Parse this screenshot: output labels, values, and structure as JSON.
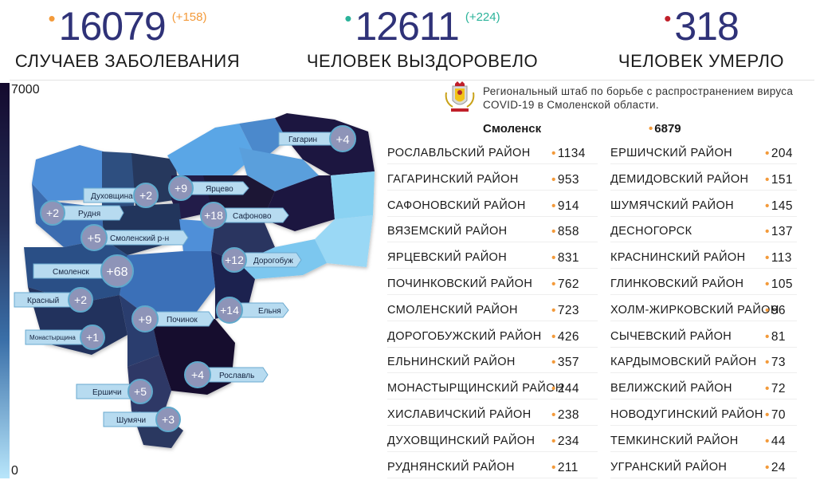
{
  "stats": {
    "cases": {
      "value": "16079",
      "delta": "(+158)",
      "caption": "Случаев заболевания",
      "dot_color": "#f39a3a",
      "delta_color": "#f39a3a"
    },
    "recovered": {
      "value": "12611",
      "delta": "(+224)",
      "caption": "Человек выздоровело",
      "dot_color": "#2bb39a",
      "delta_color": "#2bb39a"
    },
    "deaths": {
      "value": "318",
      "caption": "Человек умерло",
      "dot_color": "#c0202a"
    }
  },
  "legend": {
    "max": "7000",
    "min": "0"
  },
  "hq": {
    "text": "Региональный штаб по борьбе с распространением вируса COVID-19 в Смоленской области."
  },
  "city": {
    "name": "Смоленск",
    "value": "6879"
  },
  "districts_left": [
    {
      "name": "Рославльский район",
      "value": "1134"
    },
    {
      "name": "Гагаринский район",
      "value": "953"
    },
    {
      "name": "Сафоновский район",
      "value": "914"
    },
    {
      "name": "Вяземский район",
      "value": "858"
    },
    {
      "name": "Ярцевский район",
      "value": "831"
    },
    {
      "name": "Починковский район",
      "value": "762"
    },
    {
      "name": "Смоленский район",
      "value": "723"
    },
    {
      "name": "Дорогобужский район",
      "value": "426"
    },
    {
      "name": "Ельнинский район",
      "value": "357"
    },
    {
      "name": "Монастырщинский район",
      "value": "244"
    },
    {
      "name": "Хиславичский район",
      "value": "238"
    },
    {
      "name": "Духовщинский район",
      "value": "234"
    },
    {
      "name": "Руднянский район",
      "value": "211"
    }
  ],
  "districts_right": [
    {
      "name": "Ершичский район",
      "value": "204"
    },
    {
      "name": "Демидовский район",
      "value": "151"
    },
    {
      "name": "Шумячский район",
      "value": "145"
    },
    {
      "name": "Десногорск",
      "value": "137"
    },
    {
      "name": "Краснинский район",
      "value": "113"
    },
    {
      "name": "Глинковский район",
      "value": "105"
    },
    {
      "name": "Холм-Жирковский район",
      "value": "96"
    },
    {
      "name": "Сычевский район",
      "value": "81"
    },
    {
      "name": "Кардымовский район",
      "value": "73"
    },
    {
      "name": "Велижский район",
      "value": "72"
    },
    {
      "name": "Новодугинский район",
      "value": "70"
    },
    {
      "name": "Темкинский район",
      "value": "44"
    },
    {
      "name": "Угранский район",
      "value": "24"
    }
  ],
  "map_labels": [
    {
      "name": "Гагарин",
      "delta": "+4"
    },
    {
      "name": "Духовщина",
      "delta": "+2"
    },
    {
      "name": "Ярцево",
      "delta": "+9"
    },
    {
      "name": "Рудня",
      "delta": "+2"
    },
    {
      "name": "Сафоново",
      "delta": "+18"
    },
    {
      "name": "Смоленский р-н",
      "delta": "+5"
    },
    {
      "name": "Дорогобуж",
      "delta": "+12"
    },
    {
      "name": "Смоленск",
      "delta": "+68"
    },
    {
      "name": "Красный",
      "delta": "+2"
    },
    {
      "name": "Ельня",
      "delta": "+14"
    },
    {
      "name": "Починок",
      "delta": "+9"
    },
    {
      "name": "Монастырщина",
      "delta": "+1"
    },
    {
      "name": "Рославль",
      "delta": "+4"
    },
    {
      "name": "Ершичи",
      "delta": "+5"
    },
    {
      "name": "Шумячи",
      "delta": "+3"
    }
  ],
  "colors": {
    "title_number": "#2f3278",
    "bullet_orange": "#f39a3a",
    "map_dark": "#1a1440",
    "map_light": "#7ccdf0"
  }
}
